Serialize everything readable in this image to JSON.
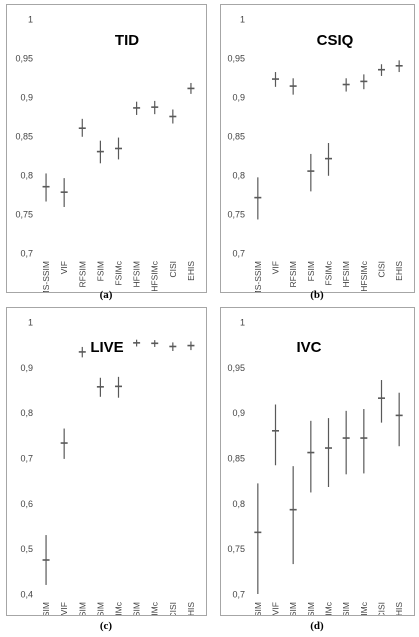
{
  "chart_data": [
    {
      "type": "scatter",
      "title": "TID",
      "caption": "(a)",
      "categories": [
        "MS-SSIM",
        "VIF",
        "RFSIM",
        "FSIM",
        "FSIMc",
        "HFSIM",
        "HFSIMc",
        "CISI",
        "EHIS"
      ],
      "values": [
        0.785,
        0.778,
        0.86,
        0.83,
        0.834,
        0.886,
        0.887,
        0.875,
        0.911
      ],
      "lower": [
        0.766,
        0.759,
        0.849,
        0.815,
        0.82,
        0.877,
        0.878,
        0.866,
        0.904
      ],
      "upper": [
        0.802,
        0.796,
        0.872,
        0.844,
        0.848,
        0.894,
        0.895,
        0.884,
        0.918
      ],
      "ylim": [
        0.7,
        1.0
      ],
      "yticks": [
        0.7,
        0.75,
        0.8,
        0.85,
        0.9,
        0.95,
        1.0
      ],
      "ytick_labels": [
        "0,7",
        "0,75",
        "0,8",
        "0,85",
        "0,9",
        "0,95",
        "1"
      ],
      "grid": false
    },
    {
      "type": "scatter",
      "title": "CSIQ",
      "caption": "(b)",
      "categories": [
        "MS-SSIM",
        "VIF",
        "RFSIM",
        "FSIM",
        "FSIMc",
        "HFSIM",
        "HFSIMc",
        "CISI",
        "EHIS"
      ],
      "values": [
        0.771,
        0.923,
        0.914,
        0.805,
        0.821,
        0.916,
        0.92,
        0.935,
        0.94
      ],
      "lower": [
        0.743,
        0.913,
        0.903,
        0.779,
        0.799,
        0.907,
        0.91,
        0.927,
        0.932
      ],
      "upper": [
        0.797,
        0.932,
        0.924,
        0.827,
        0.841,
        0.924,
        0.929,
        0.942,
        0.947
      ],
      "ylim": [
        0.7,
        1.0
      ],
      "yticks": [
        0.7,
        0.75,
        0.8,
        0.85,
        0.9,
        0.95,
        1.0
      ],
      "ytick_labels": [
        "0,7",
        "0,75",
        "0,8",
        "0,85",
        "0,9",
        "0,95",
        "1"
      ],
      "grid": false
    },
    {
      "type": "scatter",
      "title": "LIVE",
      "caption": "(c)",
      "categories": [
        "MS-SSIM",
        "VIF",
        "RFSIM",
        "FSIM",
        "FSIMc",
        "HFSIM",
        "HFSIMc",
        "CISI",
        "EHIS"
      ],
      "values": [
        0.475,
        0.733,
        0.934,
        0.857,
        0.858,
        0.954,
        0.953,
        0.946,
        0.948
      ],
      "lower": [
        0.42,
        0.698,
        0.922,
        0.835,
        0.833,
        0.946,
        0.945,
        0.936,
        0.938
      ],
      "upper": [
        0.53,
        0.765,
        0.945,
        0.877,
        0.879,
        0.961,
        0.96,
        0.955,
        0.957
      ],
      "ylim": [
        0.4,
        1.0
      ],
      "yticks": [
        0.4,
        0.5,
        0.6,
        0.7,
        0.8,
        0.9,
        1.0
      ],
      "ytick_labels": [
        "0,4",
        "0,5",
        "0,6",
        "0,7",
        "0,8",
        "0,9",
        "1"
      ],
      "grid": false
    },
    {
      "type": "scatter",
      "title": "IVC",
      "caption": "(d)",
      "categories": [
        "MS-SSIM",
        "VIF",
        "RFSIM",
        "FSIM",
        "FSIMc",
        "HFSIM",
        "HFSIMc",
        "CISI",
        "EHIS"
      ],
      "values": [
        0.768,
        0.88,
        0.793,
        0.856,
        0.861,
        0.872,
        0.872,
        0.916,
        0.897
      ],
      "lower": [
        0.7,
        0.842,
        0.733,
        0.812,
        0.818,
        0.832,
        0.833,
        0.889,
        0.863
      ],
      "upper": [
        0.822,
        0.909,
        0.841,
        0.891,
        0.894,
        0.902,
        0.904,
        0.936,
        0.922
      ],
      "ylim": [
        0.7,
        1.0
      ],
      "yticks": [
        0.7,
        0.75,
        0.8,
        0.85,
        0.9,
        0.95,
        1.0
      ],
      "ytick_labels": [
        "0,7",
        "0,75",
        "0,8",
        "0,85",
        "0,9",
        "0,95",
        "1"
      ],
      "grid": false
    }
  ],
  "colors": {
    "marker": "#595959",
    "frame": "#a6a6a6",
    "text": "#444444"
  }
}
